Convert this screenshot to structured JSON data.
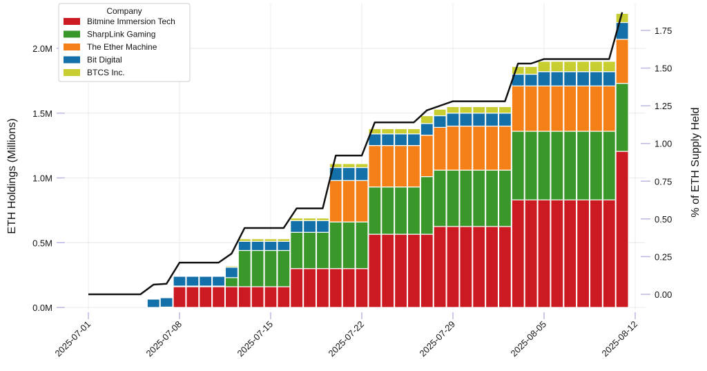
{
  "chart_data": {
    "type": "bar",
    "stacked": true,
    "ylabel": "ETH Holdings (Millions)",
    "y2label": "% of ETH Supply Held",
    "ylim": [
      0,
      2.35
    ],
    "y2lim": [
      -0.1,
      1.95
    ],
    "yticks": [
      {
        "v": 0,
        "label": "0.0M"
      },
      {
        "v": 0.5,
        "label": "0.5M"
      },
      {
        "v": 1.0,
        "label": "1.0M"
      },
      {
        "v": 1.5,
        "label": "1.5M"
      },
      {
        "v": 2.0,
        "label": "2.0M"
      }
    ],
    "y2ticks": [
      {
        "v": 0,
        "label": "0.00"
      },
      {
        "v": 0.25,
        "label": "0.25"
      },
      {
        "v": 0.5,
        "label": "0.50"
      },
      {
        "v": 0.75,
        "label": "0.75"
      },
      {
        "v": 1.0,
        "label": "1.00"
      },
      {
        "v": 1.25,
        "label": "1.25"
      },
      {
        "v": 1.5,
        "label": "1.50"
      },
      {
        "v": 1.75,
        "label": "1.75"
      }
    ],
    "xticks": [
      "2025-07-01",
      "2025-07-08",
      "2025-07-15",
      "2025-07-22",
      "2025-07-29",
      "2025-08-05",
      "2025-08-12"
    ],
    "x_start": "2025-07-01",
    "bar_start": "2025-07-06",
    "legend": {
      "title": "Company",
      "placement": "top-left"
    },
    "series": [
      {
        "name": "Bitmine Immersion Tech",
        "color": "#cc1a22",
        "values": [
          0,
          0,
          0.16,
          0.16,
          0.16,
          0.16,
          0.16,
          0.16,
          0.16,
          0.16,
          0.16,
          0.3,
          0.3,
          0.3,
          0.3,
          0.3,
          0.3,
          0.565,
          0.565,
          0.565,
          0.565,
          0.565,
          0.625,
          0.625,
          0.625,
          0.625,
          0.625,
          0.625,
          0.83,
          0.83,
          0.83,
          0.83,
          0.83,
          0.83,
          0.83,
          0.83,
          1.205
        ]
      },
      {
        "name": "SharpLink Gaming",
        "color": "#3a982b",
        "values": [
          0,
          0.003,
          0.005,
          0.005,
          0.005,
          0.005,
          0.07,
          0.28,
          0.28,
          0.28,
          0.28,
          0.28,
          0.28,
          0.28,
          0.36,
          0.36,
          0.36,
          0.365,
          0.365,
          0.365,
          0.365,
          0.445,
          0.435,
          0.435,
          0.435,
          0.435,
          0.435,
          0.435,
          0.53,
          0.53,
          0.53,
          0.53,
          0.53,
          0.53,
          0.53,
          0.53,
          0.525
        ]
      },
      {
        "name": "The Ether Machine",
        "color": "#f58018",
        "values": [
          0,
          0,
          0,
          0,
          0,
          0,
          0,
          0,
          0,
          0,
          0,
          0,
          0,
          0,
          0.32,
          0.32,
          0.32,
          0.32,
          0.32,
          0.32,
          0.32,
          0.32,
          0.33,
          0.34,
          0.34,
          0.34,
          0.34,
          0.34,
          0.35,
          0.35,
          0.35,
          0.35,
          0.35,
          0.35,
          0.35,
          0.35,
          0.34
        ]
      },
      {
        "name": "Bit Digital",
        "color": "#1470a8",
        "values": [
          0.064,
          0.072,
          0.075,
          0.075,
          0.075,
          0.075,
          0.08,
          0.07,
          0.07,
          0.07,
          0.07,
          0.09,
          0.09,
          0.09,
          0.1,
          0.1,
          0.1,
          0.09,
          0.09,
          0.09,
          0.09,
          0.09,
          0.09,
          0.1,
          0.1,
          0.1,
          0.1,
          0.1,
          0.09,
          0.09,
          0.11,
          0.11,
          0.11,
          0.11,
          0.11,
          0.11,
          0.13
        ]
      },
      {
        "name": "BTCS Inc.",
        "color": "#c8cd32",
        "values": [
          0,
          0,
          0,
          0,
          0,
          0,
          0.01,
          0.02,
          0.02,
          0.02,
          0.02,
          0.02,
          0.02,
          0.02,
          0.03,
          0.03,
          0.03,
          0.04,
          0.04,
          0.04,
          0.04,
          0.06,
          0.05,
          0.05,
          0.05,
          0.05,
          0.05,
          0.05,
          0.06,
          0.06,
          0.08,
          0.08,
          0.08,
          0.08,
          0.08,
          0.08,
          0.07
        ]
      }
    ],
    "line": {
      "name": "% of ETH Supply Held",
      "color": "#111111",
      "values": [
        0,
        0,
        0,
        0,
        0,
        0.064,
        0.07,
        0.21,
        0.21,
        0.21,
        0.21,
        0.27,
        0.44,
        0.44,
        0.44,
        0.44,
        0.57,
        0.57,
        0.57,
        0.92,
        0.92,
        0.92,
        1.14,
        1.14,
        1.14,
        1.14,
        1.22,
        1.25,
        1.28,
        1.28,
        1.28,
        1.28,
        1.28,
        1.53,
        1.53,
        1.56,
        1.56,
        1.56,
        1.56,
        1.56,
        1.56,
        1.87
      ]
    }
  }
}
